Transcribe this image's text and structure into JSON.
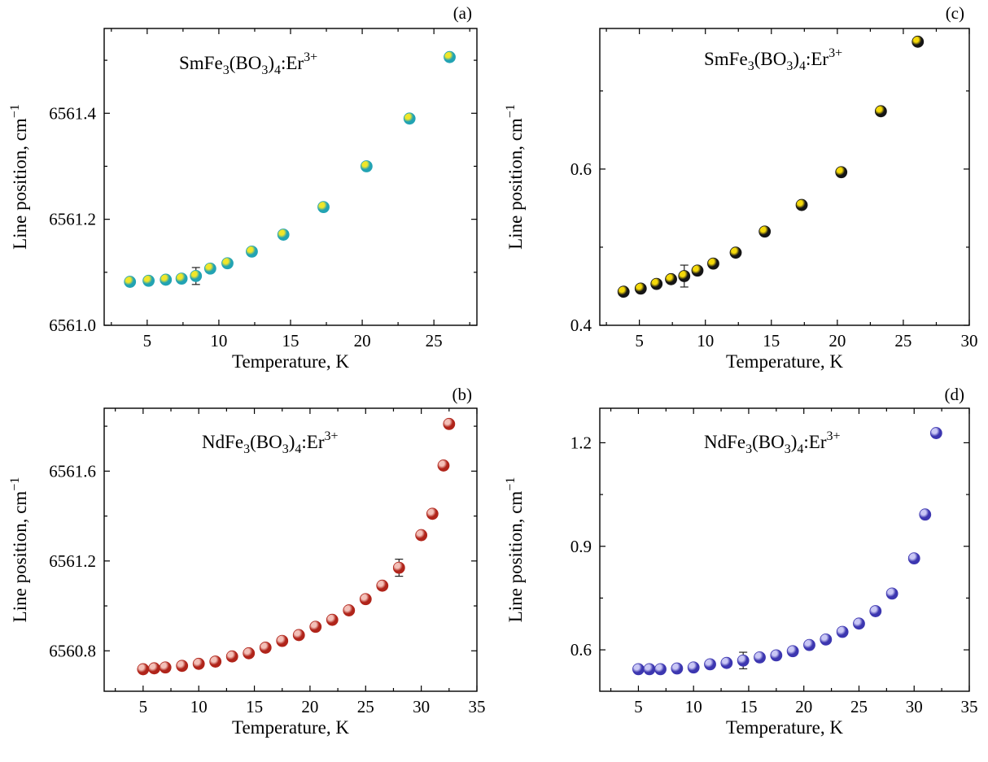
{
  "chart_data": [
    {
      "id": "a",
      "type": "scatter",
      "panel_label": "(a)",
      "annotation": {
        "pre": "SmFe",
        "sub1": "3",
        "mid": "(BO",
        "sub2": "3",
        "post": ")",
        "sub3": "4",
        "tail": ":Er",
        "sup": "3+"
      },
      "xlabel": "Temperature, K",
      "ylabel": "Line position, cm",
      "ylabel_sup": "−1",
      "xlim": [
        2,
        28
      ],
      "ylim": [
        6561.0,
        6561.56
      ],
      "xticks": [
        5,
        10,
        15,
        20,
        25
      ],
      "yticks": [
        6561.0,
        6561.2,
        6561.4
      ],
      "ytick_labels": [
        "6561.0",
        "6561.2",
        "6561.4"
      ],
      "marker_color": "#22a3b3",
      "marker_highlight": "#f0e62a",
      "x": [
        3.8,
        5.1,
        6.3,
        7.4,
        8.4,
        9.4,
        10.6,
        12.3,
        14.5,
        17.3,
        20.3,
        23.3,
        26.1
      ],
      "y": [
        6561.082,
        6561.084,
        6561.086,
        6561.088,
        6561.093,
        6561.107,
        6561.117,
        6561.139,
        6561.171,
        6561.223,
        6561.3,
        6561.39,
        6561.506
      ],
      "error_bars": [
        {
          "x": 8.4,
          "y": 6561.093,
          "err": 0.016
        }
      ]
    },
    {
      "id": "b",
      "type": "scatter",
      "panel_label": "(b)",
      "annotation": {
        "pre": "NdFe",
        "sub1": "3",
        "mid": "(BO",
        "sub2": "3",
        "post": ")",
        "sub3": "4",
        "tail": ":Er",
        "sup": "3+"
      },
      "xlabel": "Temperature, K",
      "ylabel": "Line position, cm",
      "ylabel_sup": "−1",
      "xlim": [
        1.5,
        35
      ],
      "ylim": [
        6560.62,
        6561.88
      ],
      "xticks": [
        5,
        10,
        15,
        20,
        25,
        30,
        35
      ],
      "yticks": [
        6560.8,
        6561.2,
        6561.6
      ],
      "ytick_labels": [
        "6560.8",
        "6561.2",
        "6561.6"
      ],
      "marker_color": "#b0241a",
      "marker_highlight": "#f3c0b8",
      "x": [
        5.0,
        6.0,
        7.0,
        8.5,
        10.0,
        11.5,
        13.0,
        14.5,
        16.0,
        17.5,
        19.0,
        20.5,
        22.0,
        23.5,
        25.0,
        26.5,
        28.0,
        30.0,
        31.0,
        32.0,
        32.5
      ],
      "y": [
        6560.718,
        6560.722,
        6560.726,
        6560.733,
        6560.742,
        6560.752,
        6560.775,
        6560.789,
        6560.814,
        6560.844,
        6560.87,
        6560.907,
        6560.938,
        6560.98,
        6561.03,
        6561.09,
        6561.17,
        6561.315,
        6561.41,
        6561.625,
        6561.81
      ],
      "error_bars": [
        {
          "x": 28.0,
          "y": 6561.17,
          "err": 0.038
        }
      ]
    },
    {
      "id": "c",
      "type": "scatter",
      "panel_label": "(c)",
      "annotation": {
        "pre": "SmFe",
        "sub1": "3",
        "mid": "(BO",
        "sub2": "3",
        "post": ")",
        "sub3": "4",
        "tail": ":Er",
        "sup": "3+"
      },
      "xlabel": "Temperature, K",
      "ylabel": "Line position, cm",
      "ylabel_sup": "−1",
      "xlim": [
        2,
        30
      ],
      "ylim": [
        0.4,
        0.78
      ],
      "xticks": [
        5,
        10,
        15,
        20,
        25,
        30
      ],
      "yticks": [
        0.4,
        0.6
      ],
      "ytick_labels": [
        "0.4",
        "0.6"
      ],
      "marker_color": "#151515",
      "marker_highlight": "#f5d90a",
      "x": [
        3.8,
        5.1,
        6.3,
        7.4,
        8.4,
        9.4,
        10.6,
        12.3,
        14.5,
        17.3,
        20.3,
        23.3,
        26.1
      ],
      "y": [
        0.443,
        0.447,
        0.453,
        0.459,
        0.463,
        0.47,
        0.479,
        0.493,
        0.52,
        0.554,
        0.596,
        0.674,
        0.763
      ],
      "error_bars": [
        {
          "x": 8.4,
          "y": 0.463,
          "err": 0.014
        }
      ]
    },
    {
      "id": "d",
      "type": "scatter",
      "panel_label": "(d)",
      "annotation": {
        "pre": "NdFe",
        "sub1": "3",
        "mid": "(BO",
        "sub2": "3",
        "post": ")",
        "sub3": "4",
        "tail": ":Er",
        "sup": "3+"
      },
      "xlabel": "Temperature, K",
      "ylabel": "Line position, cm",
      "ylabel_sup": "−1",
      "xlim": [
        1.5,
        35
      ],
      "ylim": [
        0.48,
        1.3
      ],
      "xticks": [
        5,
        10,
        15,
        20,
        25,
        30,
        35
      ],
      "yticks": [
        0.6,
        0.9,
        1.2
      ],
      "ytick_labels": [
        "0.6",
        "0.9",
        "1.2"
      ],
      "marker_color": "#3c36b0",
      "marker_highlight": "#c9c7f5",
      "x": [
        5.0,
        6.0,
        7.0,
        8.5,
        10.0,
        11.5,
        13.0,
        14.5,
        16.0,
        17.5,
        19.0,
        20.5,
        22.0,
        23.5,
        25.0,
        26.5,
        28.0,
        30.0,
        31.0,
        32.0
      ],
      "y": [
        0.544,
        0.544,
        0.544,
        0.546,
        0.549,
        0.558,
        0.562,
        0.569,
        0.578,
        0.584,
        0.596,
        0.614,
        0.63,
        0.652,
        0.676,
        0.712,
        0.763,
        0.865,
        0.992,
        1.228
      ],
      "error_bars": [
        {
          "x": 14.5,
          "y": 0.569,
          "err": 0.024
        }
      ]
    }
  ]
}
